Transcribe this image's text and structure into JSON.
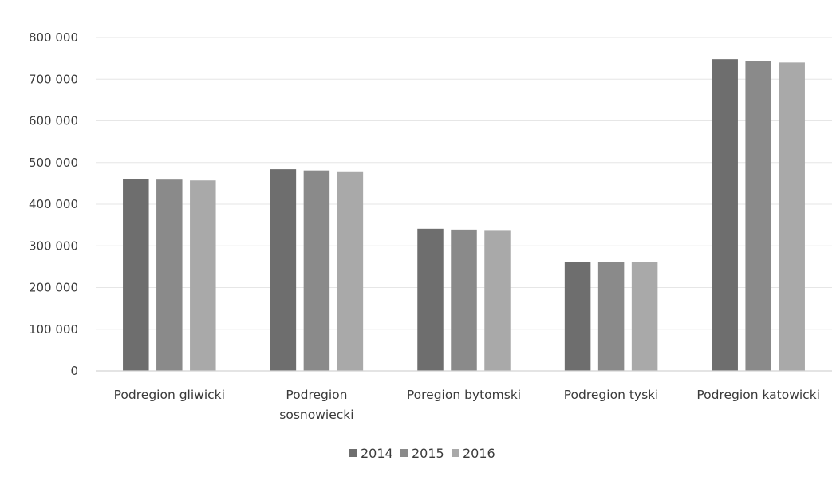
{
  "chart_data": {
    "type": "bar",
    "title": "",
    "xlabel": "",
    "ylabel": "",
    "categories": [
      [
        "Podregion gliwicki"
      ],
      [
        "Podregion",
        "sosnowiecki"
      ],
      [
        "Poregion bytomski"
      ],
      [
        "Podregion tyski"
      ],
      [
        "Podregion katowicki"
      ]
    ],
    "series": [
      {
        "name": "2014",
        "color": "#6e6e6e",
        "values": [
          461000,
          484000,
          341000,
          262000,
          748000
        ]
      },
      {
        "name": "2015",
        "color": "#8a8a8a",
        "values": [
          459000,
          481000,
          339000,
          261000,
          743000
        ]
      },
      {
        "name": "2016",
        "color": "#a9a9a9",
        "values": [
          457000,
          477000,
          338000,
          262000,
          740000
        ]
      }
    ],
    "ylim": [
      0,
      800000
    ],
    "yticks": [
      0,
      100000,
      200000,
      300000,
      400000,
      500000,
      600000,
      700000,
      800000
    ],
    "ytick_labels": [
      "0",
      "100 000",
      "200 000",
      "300 000",
      "400 000",
      "500 000",
      "600 000",
      "700 000",
      "800 000"
    ],
    "grid": true,
    "gridline_color": "#e6e6e6",
    "axis_color": "#d4d4d4",
    "legend_position": "bottom"
  }
}
